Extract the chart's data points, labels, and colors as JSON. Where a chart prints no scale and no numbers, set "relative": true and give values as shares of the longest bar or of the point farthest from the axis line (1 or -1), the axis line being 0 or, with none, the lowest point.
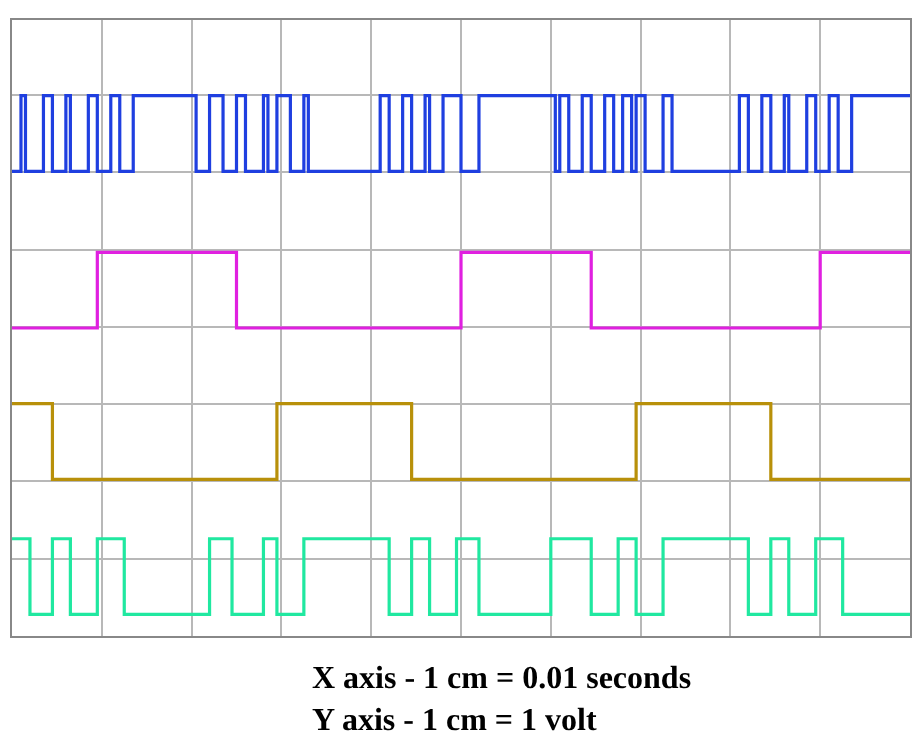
{
  "chart_data": {
    "type": "step",
    "relative": true,
    "grid": true,
    "marker": "none",
    "line_style": "solid",
    "categories": [
      null,
      null,
      null,
      null,
      null,
      null,
      null,
      null,
      null,
      null,
      null,
      null,
      null,
      null,
      null,
      null,
      null,
      null,
      null,
      null,
      null,
      null,
      null,
      null,
      null,
      null,
      null,
      null,
      null,
      null,
      null,
      null,
      null,
      null,
      null,
      null,
      null,
      null,
      null,
      null,
      null,
      null,
      null,
      null,
      null,
      null,
      null,
      null,
      null,
      null,
      null,
      null,
      null,
      null,
      null,
      null,
      null,
      null,
      null,
      null,
      null,
      null,
      null,
      null,
      null,
      null,
      null,
      null,
      null,
      null,
      null,
      null,
      null,
      null,
      null,
      null,
      null,
      null,
      null,
      null,
      null,
      null,
      null,
      null,
      null,
      null,
      null,
      null,
      null,
      null,
      null,
      null,
      null,
      null,
      null,
      null,
      null,
      null,
      null,
      null,
      null,
      null,
      null,
      null,
      null,
      null,
      null,
      null,
      null,
      null,
      null,
      null,
      null,
      null,
      null,
      null,
      null,
      null,
      null,
      null,
      null,
      null,
      null,
      null,
      null,
      null,
      null,
      null,
      null,
      null,
      null,
      null,
      null,
      null,
      null,
      null,
      null,
      null,
      null,
      null,
      null,
      null,
      null,
      null,
      null,
      null,
      null,
      null,
      null,
      null,
      null,
      null,
      null,
      null,
      null,
      null,
      null,
      null,
      null,
      null,
      null,
      null,
      null,
      null,
      null,
      null,
      null,
      null,
      null,
      null,
      null,
      null,
      null,
      null,
      null,
      null,
      null,
      null,
      null,
      null,
      null,
      null,
      null,
      null,
      null,
      null,
      null,
      null,
      null,
      null,
      null,
      null,
      null,
      null,
      null,
      null,
      null,
      null,
      null,
      null,
      null
    ],
    "annotations": [
      "X axis - 1 cm = 0.01 seconds",
      "Y axis - 1 cm = 1 volt"
    ],
    "series": [
      {
        "color": "#1f3fe0",
        "values": [
          0.86,
          0.86,
          1,
          0.86,
          0.86,
          0.86,
          0.86,
          1,
          1,
          0.86,
          0.86,
          0.86,
          1,
          0.86,
          0.86,
          0.86,
          0.86,
          1,
          1,
          0.86,
          0.86,
          0.86,
          1,
          1,
          0.86,
          0.86,
          0.86,
          1,
          1,
          1,
          1,
          1,
          1,
          1,
          1,
          1,
          1,
          1,
          1,
          1,
          1,
          0.86,
          0.86,
          0.86,
          1,
          1,
          1,
          0.86,
          0.86,
          0.86,
          1,
          1,
          0.86,
          0.86,
          0.86,
          0.86,
          1,
          0.86,
          0.86,
          1,
          1,
          1,
          0.86,
          0.86,
          0.86,
          1,
          0.86,
          0.86,
          0.86,
          0.86,
          0.86,
          0.86,
          0.86,
          0.86,
          0.86,
          0.86,
          0.86,
          0.86,
          0.86,
          0.86,
          0.86,
          0.86,
          1,
          1,
          0.86,
          0.86,
          0.86,
          1,
          1,
          0.86,
          0.86,
          0.86,
          1,
          0.86,
          0.86,
          0.86,
          1,
          1,
          1,
          1,
          0.86,
          0.86,
          0.86,
          0.86,
          1,
          1,
          1,
          1,
          1,
          1,
          1,
          1,
          1,
          1,
          1,
          1,
          1,
          1,
          1,
          1,
          1,
          0.86,
          1,
          1,
          0.86,
          0.86,
          0.86,
          1,
          1,
          0.86,
          0.86,
          0.86,
          1,
          1,
          0.86,
          0.86,
          1,
          1,
          0.86,
          1,
          1,
          0.86,
          0.86,
          0.86,
          0.86,
          1,
          1,
          0.86,
          0.86,
          0.86,
          0.86,
          0.86,
          0.86,
          0.86,
          0.86,
          0.86,
          0.86,
          0.86,
          0.86,
          0.86,
          0.86,
          0.86,
          1,
          1,
          0.86,
          0.86,
          0.86,
          1,
          1,
          0.86,
          0.86,
          0.86,
          1,
          0.86,
          0.86,
          0.86,
          0.86,
          1,
          1,
          0.86,
          0.86,
          0.86,
          1,
          1,
          0.86,
          0.86,
          0.86,
          1,
          1,
          1,
          1,
          1,
          1,
          1,
          1,
          1,
          1,
          1,
          1,
          1,
          1
        ]
      },
      {
        "color": "#e020e0",
        "values": [
          0.57,
          0.57,
          0.57,
          0.57,
          0.57,
          0.57,
          0.57,
          0.57,
          0.57,
          0.57,
          0.57,
          0.57,
          0.57,
          0.57,
          0.57,
          0.57,
          0.57,
          0.57,
          0.57,
          0.71,
          0.71,
          0.71,
          0.71,
          0.71,
          0.71,
          0.71,
          0.71,
          0.71,
          0.71,
          0.71,
          0.71,
          0.71,
          0.71,
          0.71,
          0.71,
          0.71,
          0.71,
          0.71,
          0.71,
          0.71,
          0.71,
          0.71,
          0.71,
          0.71,
          0.71,
          0.71,
          0.71,
          0.71,
          0.71,
          0.71,
          0.57,
          0.57,
          0.57,
          0.57,
          0.57,
          0.57,
          0.57,
          0.57,
          0.57,
          0.57,
          0.57,
          0.57,
          0.57,
          0.57,
          0.57,
          0.57,
          0.57,
          0.57,
          0.57,
          0.57,
          0.57,
          0.57,
          0.57,
          0.57,
          0.57,
          0.57,
          0.57,
          0.57,
          0.57,
          0.57,
          0.57,
          0.57,
          0.57,
          0.57,
          0.57,
          0.57,
          0.57,
          0.57,
          0.57,
          0.57,
          0.57,
          0.57,
          0.57,
          0.57,
          0.57,
          0.57,
          0.57,
          0.57,
          0.57,
          0.57,
          0.71,
          0.71,
          0.71,
          0.71,
          0.71,
          0.71,
          0.71,
          0.71,
          0.71,
          0.71,
          0.71,
          0.71,
          0.71,
          0.71,
          0.71,
          0.71,
          0.71,
          0.71,
          0.71,
          0.71,
          0.71,
          0.71,
          0.71,
          0.71,
          0.71,
          0.71,
          0.71,
          0.71,
          0.71,
          0.57,
          0.57,
          0.57,
          0.57,
          0.57,
          0.57,
          0.57,
          0.57,
          0.57,
          0.57,
          0.57,
          0.57,
          0.57,
          0.57,
          0.57,
          0.57,
          0.57,
          0.57,
          0.57,
          0.57,
          0.57,
          0.57,
          0.57,
          0.57,
          0.57,
          0.57,
          0.57,
          0.57,
          0.57,
          0.57,
          0.57,
          0.57,
          0.57,
          0.57,
          0.57,
          0.57,
          0.57,
          0.57,
          0.57,
          0.57,
          0.57,
          0.57,
          0.57,
          0.57,
          0.57,
          0.57,
          0.57,
          0.57,
          0.57,
          0.57,
          0.57,
          0.71,
          0.71,
          0.71,
          0.71,
          0.71,
          0.71,
          0.71,
          0.71,
          0.71,
          0.71,
          0.71,
          0.71,
          0.71,
          0.71,
          0.71,
          0.71,
          0.71,
          0.71,
          0.71,
          0.71,
          0.71
        ]
      },
      {
        "color": "#b8900a",
        "values": [
          0.43,
          0.43,
          0.43,
          0.43,
          0.43,
          0.43,
          0.43,
          0.43,
          0.43,
          0.29,
          0.29,
          0.29,
          0.29,
          0.29,
          0.29,
          0.29,
          0.29,
          0.29,
          0.29,
          0.29,
          0.29,
          0.29,
          0.29,
          0.29,
          0.29,
          0.29,
          0.29,
          0.29,
          0.29,
          0.29,
          0.29,
          0.29,
          0.29,
          0.29,
          0.29,
          0.29,
          0.29,
          0.29,
          0.29,
          0.29,
          0.29,
          0.29,
          0.29,
          0.29,
          0.29,
          0.29,
          0.29,
          0.29,
          0.29,
          0.29,
          0.29,
          0.29,
          0.29,
          0.29,
          0.29,
          0.29,
          0.29,
          0.29,
          0.29,
          0.43,
          0.43,
          0.43,
          0.43,
          0.43,
          0.43,
          0.43,
          0.43,
          0.43,
          0.43,
          0.43,
          0.43,
          0.43,
          0.43,
          0.43,
          0.43,
          0.43,
          0.43,
          0.43,
          0.43,
          0.43,
          0.43,
          0.43,
          0.43,
          0.43,
          0.43,
          0.43,
          0.43,
          0.43,
          0.43,
          0.29,
          0.29,
          0.29,
          0.29,
          0.29,
          0.29,
          0.29,
          0.29,
          0.29,
          0.29,
          0.29,
          0.29,
          0.29,
          0.29,
          0.29,
          0.29,
          0.29,
          0.29,
          0.29,
          0.29,
          0.29,
          0.29,
          0.29,
          0.29,
          0.29,
          0.29,
          0.29,
          0.29,
          0.29,
          0.29,
          0.29,
          0.29,
          0.29,
          0.29,
          0.29,
          0.29,
          0.29,
          0.29,
          0.29,
          0.29,
          0.29,
          0.29,
          0.29,
          0.29,
          0.29,
          0.29,
          0.29,
          0.29,
          0.29,
          0.29,
          0.43,
          0.43,
          0.43,
          0.43,
          0.43,
          0.43,
          0.43,
          0.43,
          0.43,
          0.43,
          0.43,
          0.43,
          0.43,
          0.43,
          0.43,
          0.43,
          0.43,
          0.43,
          0.43,
          0.43,
          0.43,
          0.43,
          0.43,
          0.43,
          0.43,
          0.43,
          0.43,
          0.43,
          0.43,
          0.43,
          0.29,
          0.29,
          0.29,
          0.29,
          0.29,
          0.29,
          0.29,
          0.29,
          0.29,
          0.29,
          0.29,
          0.29,
          0.29,
          0.29,
          0.29,
          0.29,
          0.29,
          0.29,
          0.29,
          0.29,
          0.29,
          0.29,
          0.29,
          0.29,
          0.29,
          0.29,
          0.29,
          0.29,
          0.29,
          0.29,
          0.29,
          0.29
        ]
      },
      {
        "color": "#20e8a0",
        "values": [
          0.18,
          0.18,
          0.18,
          0.18,
          0.04,
          0.04,
          0.04,
          0.04,
          0.04,
          0.18,
          0.18,
          0.18,
          0.18,
          0.04,
          0.04,
          0.04,
          0.04,
          0.04,
          0.04,
          0.18,
          0.18,
          0.18,
          0.18,
          0.18,
          0.18,
          0.04,
          0.04,
          0.04,
          0.04,
          0.04,
          0.04,
          0.04,
          0.04,
          0.04,
          0.04,
          0.04,
          0.04,
          0.04,
          0.04,
          0.04,
          0.04,
          0.04,
          0.04,
          0.04,
          0.18,
          0.18,
          0.18,
          0.18,
          0.18,
          0.04,
          0.04,
          0.04,
          0.04,
          0.04,
          0.04,
          0.04,
          0.18,
          0.18,
          0.18,
          0.04,
          0.04,
          0.04,
          0.04,
          0.04,
          0.04,
          0.18,
          0.18,
          0.18,
          0.18,
          0.18,
          0.18,
          0.18,
          0.18,
          0.18,
          0.18,
          0.18,
          0.18,
          0.18,
          0.18,
          0.18,
          0.18,
          0.18,
          0.18,
          0.18,
          0.04,
          0.04,
          0.04,
          0.04,
          0.04,
          0.18,
          0.18,
          0.18,
          0.18,
          0.04,
          0.04,
          0.04,
          0.04,
          0.04,
          0.04,
          0.18,
          0.18,
          0.18,
          0.18,
          0.18,
          0.04,
          0.04,
          0.04,
          0.04,
          0.04,
          0.04,
          0.04,
          0.04,
          0.04,
          0.04,
          0.04,
          0.04,
          0.04,
          0.04,
          0.04,
          0.04,
          0.18,
          0.18,
          0.18,
          0.18,
          0.18,
          0.18,
          0.18,
          0.18,
          0.18,
          0.04,
          0.04,
          0.04,
          0.04,
          0.04,
          0.04,
          0.18,
          0.18,
          0.18,
          0.18,
          0.04,
          0.04,
          0.04,
          0.04,
          0.04,
          0.04,
          0.18,
          0.18,
          0.18,
          0.18,
          0.18,
          0.18,
          0.18,
          0.18,
          0.18,
          0.18,
          0.18,
          0.18,
          0.18,
          0.18,
          0.18,
          0.18,
          0.18,
          0.18,
          0.18,
          0.04,
          0.04,
          0.04,
          0.04,
          0.04,
          0.18,
          0.18,
          0.18,
          0.18,
          0.04,
          0.04,
          0.04,
          0.04,
          0.04,
          0.04,
          0.18,
          0.18,
          0.18,
          0.18,
          0.18,
          0.18,
          0.04,
          0.04,
          0.04,
          0.04,
          0.04,
          0.04,
          0.04,
          0.04,
          0.04,
          0.04,
          0.04,
          0.04,
          0.04,
          0.04,
          0.04,
          0.04
        ]
      }
    ]
  }
}
